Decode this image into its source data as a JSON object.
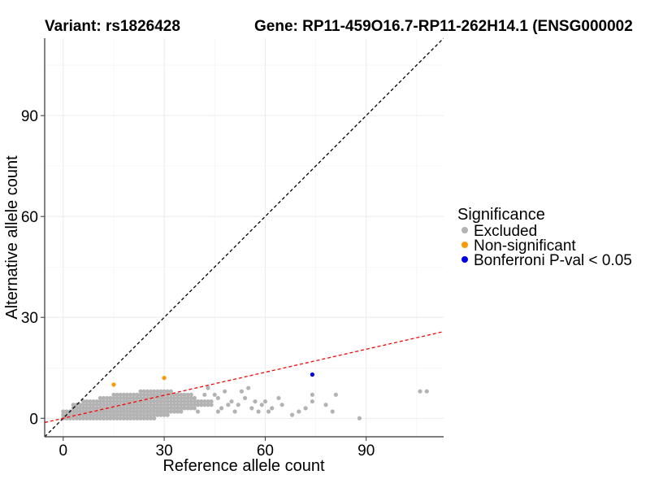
{
  "chart_data": {
    "type": "scatter",
    "title_left": "Variant: rs1826428",
    "title_right": "Gene: RP11-459O16.7-RP11-262H14.1 (ENSG000002",
    "xlabel": "Reference allele count",
    "ylabel": "Alternative allele count",
    "xlim": [
      -5.5,
      113
    ],
    "ylim": [
      -5.5,
      113
    ],
    "xticks": [
      0,
      30,
      60,
      90
    ],
    "yticks": [
      0,
      30,
      60,
      90
    ],
    "grid": true,
    "reference_lines": [
      {
        "name": "diagonal",
        "slope": 1,
        "intercept": 0,
        "color": "#000000",
        "dash": "4,3"
      },
      {
        "name": "fit",
        "slope": 0.228,
        "intercept": 0,
        "color": "#ff0000",
        "dash": "4,3"
      }
    ],
    "legend": {
      "title": "Significance",
      "position": "right",
      "entries": [
        {
          "label": "Excluded",
          "color": "#b3b3b3"
        },
        {
          "label": "Non-significant",
          "color": "#ff9900"
        },
        {
          "label": "Bonferroni P-val < 0.05",
          "color": "#0000ee"
        }
      ]
    },
    "series": [
      {
        "name": "Excluded",
        "color": "#b3b3b3",
        "points": [
          [
            45,
            7
          ],
          [
            46,
            6
          ],
          [
            48,
            8
          ],
          [
            50,
            5
          ],
          [
            52,
            4
          ],
          [
            54,
            6
          ],
          [
            55,
            9
          ],
          [
            56,
            3
          ],
          [
            58,
            2
          ],
          [
            60,
            5
          ],
          [
            62,
            3
          ],
          [
            65,
            4
          ],
          [
            68,
            1
          ],
          [
            70,
            2
          ],
          [
            72,
            3
          ],
          [
            74,
            7
          ],
          [
            74,
            5
          ],
          [
            78,
            4
          ],
          [
            80,
            2
          ],
          [
            81,
            7
          ],
          [
            88,
            0
          ],
          [
            106,
            8
          ],
          [
            108,
            8
          ],
          [
            42,
            7
          ],
          [
            44,
            4
          ],
          [
            47,
            3
          ],
          [
            49,
            4
          ],
          [
            51,
            2
          ],
          [
            53,
            8
          ],
          [
            57,
            5
          ],
          [
            59,
            4
          ],
          [
            61,
            2
          ],
          [
            64,
            6
          ],
          [
            40,
            2
          ],
          [
            43,
            9
          ],
          [
            41,
            5
          ],
          [
            39,
            6
          ],
          [
            38,
            4
          ],
          [
            46,
            2
          ]
        ],
        "dense_cloud": {
          "x_max": 44,
          "note": "dense cloud"
        }
      },
      {
        "name": "Non-significant",
        "color": "#ff9900",
        "points": [
          [
            15,
            10
          ],
          [
            30,
            12
          ]
        ]
      },
      {
        "name": "Bonferroni P-val < 0.05",
        "color": "#0000ee",
        "points": [
          [
            74,
            13
          ]
        ]
      }
    ]
  }
}
